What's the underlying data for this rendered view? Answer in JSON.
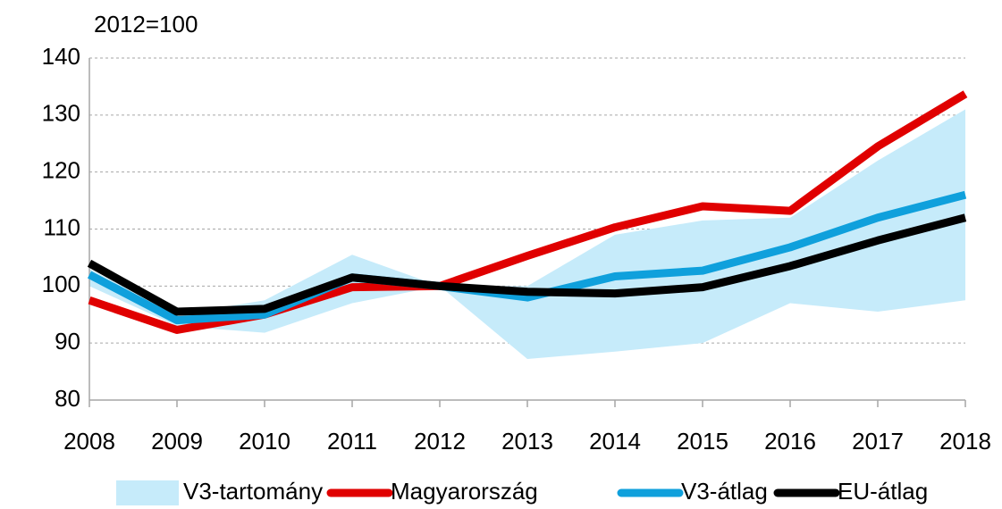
{
  "chart_data": {
    "type": "line",
    "subtitle": "2012=100",
    "x": [
      2008,
      2009,
      2010,
      2011,
      2012,
      2013,
      2014,
      2015,
      2016,
      2017,
      2018
    ],
    "xlim": [
      2008,
      2018
    ],
    "xticks": [
      2008,
      2009,
      2010,
      2011,
      2012,
      2013,
      2014,
      2015,
      2016,
      2017,
      2018
    ],
    "ylim": [
      80,
      140
    ],
    "yticks": [
      80,
      90,
      100,
      110,
      120,
      130,
      140
    ],
    "grid": true,
    "legend": "bottom",
    "series": [
      {
        "name": "V3-tartomány",
        "color": "#c6ebfa",
        "type": "range",
        "low": [
          100,
          93,
          91.8,
          97,
          100,
          87.2,
          88.5,
          90,
          97,
          95.5,
          97.5
        ],
        "high": [
          103,
          95,
          97.5,
          105.5,
          100,
          100,
          109,
          111.5,
          112,
          122,
          131
        ]
      },
      {
        "name": "Magyarország",
        "color": "#e00000",
        "values": [
          97.5,
          92.3,
          95,
          99.8,
          100,
          105.3,
          110.3,
          114,
          113.2,
          124.5,
          133.7
        ]
      },
      {
        "name": "V3-átlag",
        "color": "#0fa0dc",
        "values": [
          102,
          94,
          95,
          101.5,
          100,
          98,
          101.7,
          102.7,
          106.8,
          112,
          116
        ]
      },
      {
        "name": "EU-átlag",
        "color": "#000000",
        "values": [
          104,
          95.5,
          96,
          101.5,
          100,
          99,
          98.7,
          99.8,
          103.5,
          108,
          112
        ]
      }
    ]
  }
}
